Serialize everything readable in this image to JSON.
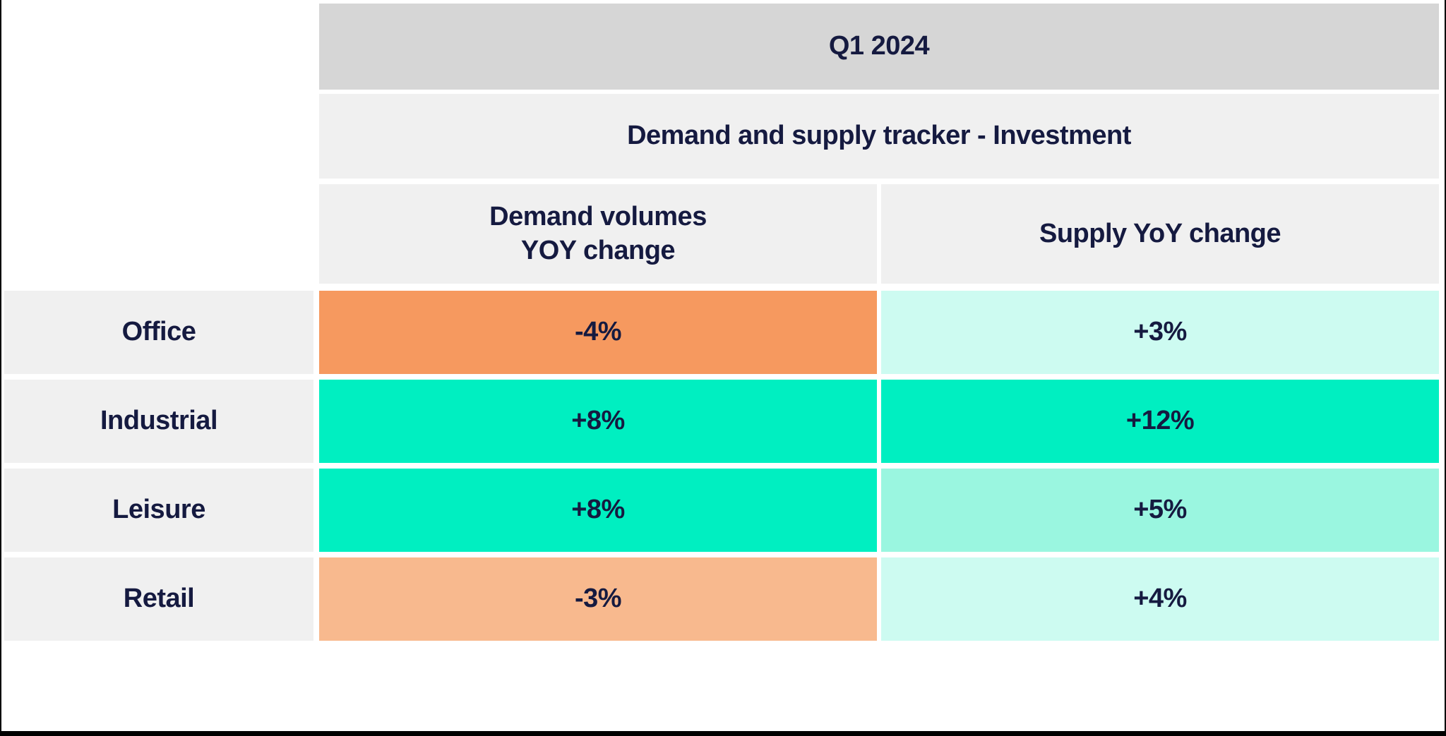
{
  "title_row": {
    "label": "Q1 2024"
  },
  "subtitle_row": {
    "label": "Demand and supply tracker - Investment"
  },
  "column_headers": {
    "demand": {
      "label": "Demand volumes\nYOY change"
    },
    "supply": {
      "label": "Supply YoY change"
    }
  },
  "rows": [
    {
      "label": "Office",
      "demand": {
        "value": "-4%",
        "color": "#F6995F"
      },
      "supply": {
        "value": "+3%",
        "color": "#CDFBF1"
      }
    },
    {
      "label": "Industrial",
      "demand": {
        "value": "+8%",
        "color": "#00EFC1"
      },
      "supply": {
        "value": "+12%",
        "color": "#00EFC1"
      }
    },
    {
      "label": "Leisure",
      "demand": {
        "value": "+8%",
        "color": "#00EFC1"
      },
      "supply": {
        "value": "+5%",
        "color": "#9AF6E0"
      }
    },
    {
      "label": "Retail",
      "demand": {
        "value": "-3%",
        "color": "#F8B98E"
      },
      "supply": {
        "value": "+4%",
        "color": "#CDFBF1"
      }
    }
  ],
  "colors": {
    "header_grey": "#D6D6D6",
    "panel_grey": "#F0F0F0",
    "text_navy": "#151A40",
    "negative_strong": "#F6995F",
    "negative_soft": "#F8B98E",
    "positive_strong": "#00EFC1",
    "positive_medium": "#9AF6E0",
    "positive_soft": "#CDFBF1",
    "frame_black": "#000000"
  },
  "chart_data": {
    "type": "table",
    "title": "Q1 2024",
    "subtitle": "Demand and supply tracker - Investment",
    "columns": [
      "Demand volumes YOY change",
      "Supply YoY change"
    ],
    "row_categories": [
      "Office",
      "Industrial",
      "Leisure",
      "Retail"
    ],
    "values_pct": [
      [
        -4,
        3
      ],
      [
        8,
        12
      ],
      [
        8,
        5
      ],
      [
        -3,
        4
      ]
    ],
    "value_labels": [
      [
        "-4%",
        "+3%"
      ],
      [
        "+8%",
        "+12%"
      ],
      [
        "+8%",
        "+5%"
      ],
      [
        "-3%",
        "+4%"
      ]
    ],
    "cell_colors": [
      [
        "#F6995F",
        "#CDFBF1"
      ],
      [
        "#00EFC1",
        "#00EFC1"
      ],
      [
        "#00EFC1",
        "#9AF6E0"
      ],
      [
        "#F8B98E",
        "#CDFBF1"
      ]
    ],
    "color_semantics": "orange = negative YoY change, teal/mint = positive YoY change (stronger colour = larger magnitude)"
  }
}
